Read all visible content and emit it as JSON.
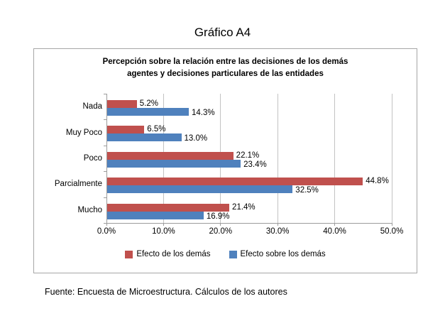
{
  "page": {
    "title": "Gráfico A4"
  },
  "chart": {
    "title_lines": {
      "line1": "Percepción sobre la relación entre las decisiones de los demás",
      "line2": "agentes y decisiones particulares de las entidades"
    }
  },
  "chart_data": {
    "type": "bar",
    "orientation": "horizontal",
    "title": "Percepción sobre la relación entre las decisiones de los demás agentes y decisiones particulares de las entidades",
    "categories": [
      "Nada",
      "Muy Poco",
      "Poco",
      "Parcialmente",
      "Mucho"
    ],
    "series": [
      {
        "name": "Efecto de los demás",
        "color": "#C0504D",
        "values": [
          5.2,
          6.5,
          22.1,
          44.8,
          21.4
        ]
      },
      {
        "name": "Efecto sobre los demás",
        "color": "#4F81BD",
        "values": [
          14.3,
          13.0,
          23.4,
          32.5,
          16.9
        ]
      }
    ],
    "data_label_format": "0.0%",
    "xlim": [
      0,
      50
    ],
    "x_tick_labels": [
      "0.0%",
      "10.0%",
      "20.0%",
      "30.0%",
      "40.0%",
      "50.0%"
    ],
    "grid": true,
    "legend_position": "bottom",
    "colors": {
      "gridline": "#c3c3c3",
      "axis": "#9c9c9c",
      "border": "#a6a6a6"
    }
  },
  "footer": {
    "source_text": "Fuente: Encuesta de Microestructura. Cálculos de los autores"
  }
}
